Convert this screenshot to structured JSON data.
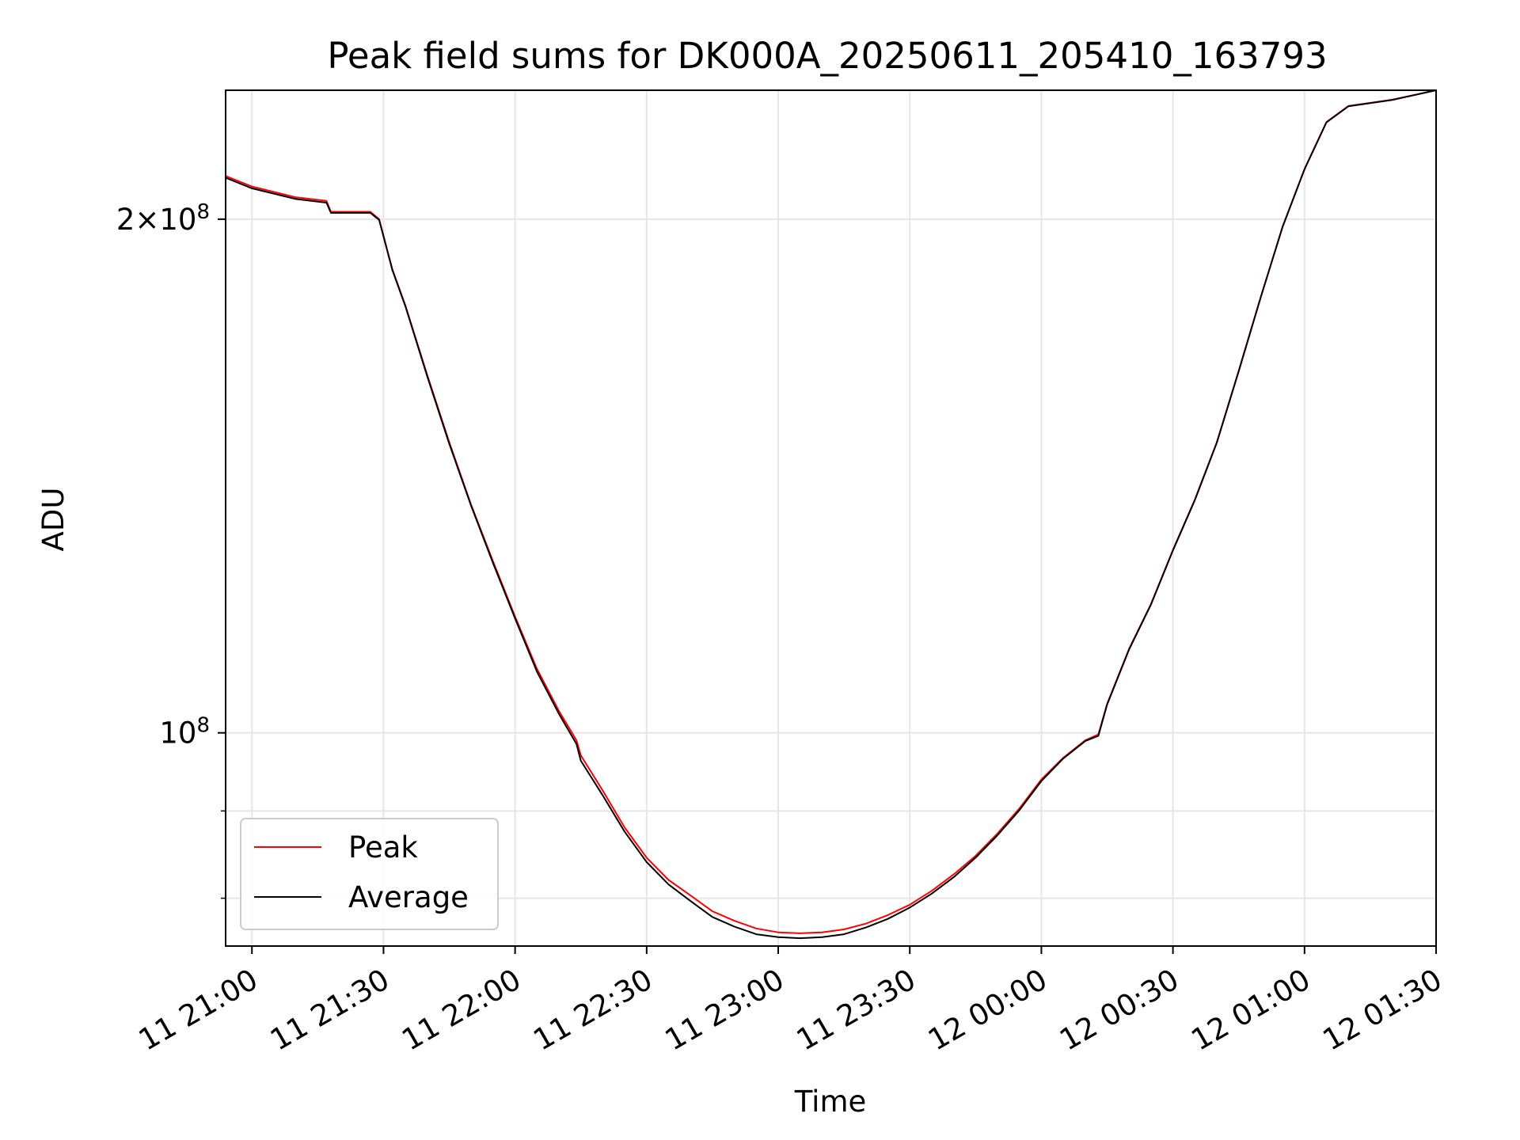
{
  "chart_data": {
    "type": "line",
    "title": "Peak field sums for DK000A_20250611_205410_163793",
    "xlabel": "Time",
    "ylabel": "ADU",
    "y_scale": "log",
    "ylim": [
      75000000,
      238000000
    ],
    "xlim": [
      "2025-06-11 20:54",
      "2025-06-12 01:30"
    ],
    "x_ticks": [
      {
        "value": "2025-06-11 21:00",
        "label": "11 21:00"
      },
      {
        "value": "2025-06-11 21:30",
        "label": "11 21:30"
      },
      {
        "value": "2025-06-11 22:00",
        "label": "11 22:00"
      },
      {
        "value": "2025-06-11 22:30",
        "label": "11 22:30"
      },
      {
        "value": "2025-06-11 23:00",
        "label": "11 23:00"
      },
      {
        "value": "2025-06-11 23:30",
        "label": "11 23:30"
      },
      {
        "value": "2025-06-12 00:00",
        "label": "12 00:00"
      },
      {
        "value": "2025-06-12 00:30",
        "label": "12 00:30"
      },
      {
        "value": "2025-06-12 01:00",
        "label": "12 01:00"
      },
      {
        "value": "2025-06-12 01:30",
        "label": "12 01:30"
      }
    ],
    "y_ticks": [
      {
        "value": 200000000,
        "base": "2×10",
        "exp": "8"
      },
      {
        "value": 100000000,
        "base": "10",
        "exp": "8"
      }
    ],
    "y_minor_ticks": [
      80000000,
      90000000
    ],
    "grid": true,
    "legend_position": "lower-left",
    "colors": {
      "Peak": "#ff0000",
      "Average": "#000000"
    },
    "series": [
      {
        "name": "Peak",
        "x": [
          "2025-06-11 20:54",
          "2025-06-11 21:00",
          "2025-06-11 21:10",
          "2025-06-11 21:17",
          "2025-06-11 21:18",
          "2025-06-11 21:27",
          "2025-06-11 21:29",
          "2025-06-11 21:32",
          "2025-06-11 21:35",
          "2025-06-11 21:40",
          "2025-06-11 21:45",
          "2025-06-11 21:50",
          "2025-06-11 21:55",
          "2025-06-11 22:00",
          "2025-06-11 22:05",
          "2025-06-11 22:10",
          "2025-06-11 22:14",
          "2025-06-11 22:15",
          "2025-06-11 22:20",
          "2025-06-11 22:25",
          "2025-06-11 22:30",
          "2025-06-11 22:35",
          "2025-06-11 22:40",
          "2025-06-11 22:45",
          "2025-06-11 22:50",
          "2025-06-11 22:55",
          "2025-06-11 23:00",
          "2025-06-11 23:05",
          "2025-06-11 23:10",
          "2025-06-11 23:15",
          "2025-06-11 23:20",
          "2025-06-11 23:25",
          "2025-06-11 23:30",
          "2025-06-11 23:35",
          "2025-06-11 23:40",
          "2025-06-11 23:45",
          "2025-06-11 23:50",
          "2025-06-11 23:55",
          "2025-06-12 00:00",
          "2025-06-12 00:05",
          "2025-06-12 00:10",
          "2025-06-12 00:13",
          "2025-06-12 00:15",
          "2025-06-12 00:20",
          "2025-06-12 00:25",
          "2025-06-12 00:30",
          "2025-06-12 00:35",
          "2025-06-12 00:40",
          "2025-06-12 00:45",
          "2025-06-12 00:50",
          "2025-06-12 00:55",
          "2025-06-12 01:00",
          "2025-06-12 01:05",
          "2025-06-12 01:10",
          "2025-06-12 01:20",
          "2025-06-12 01:30"
        ],
        "y": [
          212000000,
          209000000,
          206000000,
          205000000,
          202000000,
          202000000,
          200000000,
          187000000,
          178000000,
          162000000,
          148000000,
          136000000,
          126000000,
          117000000,
          109000000,
          103000000,
          99000000,
          97000000,
          92500000,
          88000000,
          84500000,
          82000000,
          80300000,
          78600000,
          77600000,
          76800000,
          76400000,
          76300000,
          76400000,
          76700000,
          77300000,
          78200000,
          79300000,
          80800000,
          82600000,
          84700000,
          87300000,
          90300000,
          93900000,
          96700000,
          99000000,
          99800000,
          104000000,
          112000000,
          119000000,
          128000000,
          137000000,
          148000000,
          163000000,
          180000000,
          198000000,
          214000000,
          228000000,
          233000000,
          235000000,
          238000000
        ]
      },
      {
        "name": "Average",
        "x": [
          "2025-06-11 20:54",
          "2025-06-11 21:00",
          "2025-06-11 21:10",
          "2025-06-11 21:17",
          "2025-06-11 21:18",
          "2025-06-11 21:27",
          "2025-06-11 21:29",
          "2025-06-11 21:32",
          "2025-06-11 21:35",
          "2025-06-11 21:40",
          "2025-06-11 21:45",
          "2025-06-11 21:50",
          "2025-06-11 21:55",
          "2025-06-11 22:00",
          "2025-06-11 22:05",
          "2025-06-11 22:10",
          "2025-06-11 22:14",
          "2025-06-11 22:15",
          "2025-06-11 22:20",
          "2025-06-11 22:25",
          "2025-06-11 22:30",
          "2025-06-11 22:35",
          "2025-06-11 22:40",
          "2025-06-11 22:45",
          "2025-06-11 22:50",
          "2025-06-11 22:55",
          "2025-06-11 23:00",
          "2025-06-11 23:05",
          "2025-06-11 23:10",
          "2025-06-11 23:15",
          "2025-06-11 23:20",
          "2025-06-11 23:25",
          "2025-06-11 23:30",
          "2025-06-11 23:35",
          "2025-06-11 23:40",
          "2025-06-11 23:45",
          "2025-06-11 23:50",
          "2025-06-11 23:55",
          "2025-06-12 00:00",
          "2025-06-12 00:05",
          "2025-06-12 00:10",
          "2025-06-12 00:13",
          "2025-06-12 00:15",
          "2025-06-12 00:20",
          "2025-06-12 00:25",
          "2025-06-12 00:30",
          "2025-06-12 00:35",
          "2025-06-12 00:40",
          "2025-06-12 00:45",
          "2025-06-12 00:50",
          "2025-06-12 00:55",
          "2025-06-12 01:00",
          "2025-06-12 01:05",
          "2025-06-12 01:10",
          "2025-06-12 01:20",
          "2025-06-12 01:30"
        ],
        "y": [
          211500000,
          208500000,
          205500000,
          204500000,
          201700000,
          201700000,
          199800000,
          186800000,
          177800000,
          161700000,
          147700000,
          135800000,
          125700000,
          116700000,
          108600000,
          102600000,
          98500000,
          96300000,
          91900000,
          87500000,
          84000000,
          81500000,
          79700000,
          78000000,
          77000000,
          76200000,
          75900000,
          75800000,
          75900000,
          76200000,
          76900000,
          77800000,
          79000000,
          80500000,
          82300000,
          84500000,
          87100000,
          90100000,
          93700000,
          96600000,
          98900000,
          99600000,
          103900000,
          111900000,
          118900000,
          127900000,
          136900000,
          147900000,
          162900000,
          179900000,
          197900000,
          213900000,
          227900000,
          232900000,
          234900000,
          238000000
        ]
      }
    ]
  }
}
